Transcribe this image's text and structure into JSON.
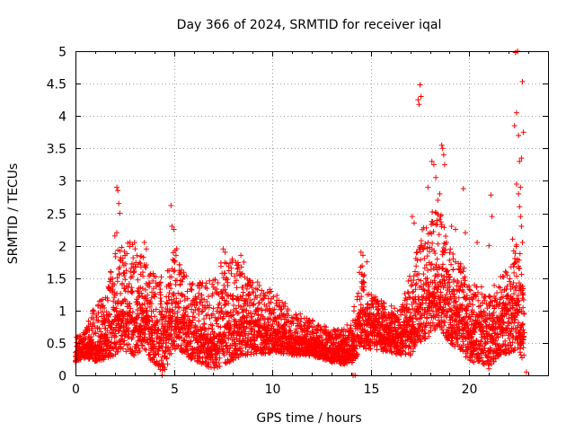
{
  "chart_data": {
    "type": "scatter",
    "title": "Day 366 of 2024, SRMTID for receiver iqal",
    "xlabel": "GPS time / hours",
    "ylabel": "SRMTID / TECUs",
    "xlim": [
      0,
      24
    ],
    "ylim": [
      0,
      5
    ],
    "xticks": [
      0,
      5,
      10,
      15,
      20
    ],
    "yticks": [
      0,
      0.5,
      1,
      1.5,
      2,
      2.5,
      3,
      3.5,
      4,
      4.5,
      5
    ],
    "x_tick_labels": [
      "0",
      "5",
      "10",
      "15",
      "20"
    ],
    "y_tick_labels": [
      "0",
      "0.5",
      "1",
      "1.5",
      "2",
      "2.5",
      "3",
      "3.5",
      "4",
      "4.5",
      "5"
    ],
    "grid": true,
    "marker": "+",
    "marker_color": "#ff0000",
    "series": [
      {
        "name": "SRMTID",
        "envelope": [
          {
            "x": 0.0,
            "low": 0.2,
            "typ": 0.35,
            "high": 0.6
          },
          {
            "x": 0.5,
            "low": 0.25,
            "typ": 0.45,
            "high": 0.7
          },
          {
            "x": 1.0,
            "low": 0.2,
            "typ": 0.45,
            "high": 1.1
          },
          {
            "x": 1.5,
            "low": 0.25,
            "typ": 0.6,
            "high": 1.2
          },
          {
            "x": 2.0,
            "low": 0.3,
            "typ": 0.85,
            "high": 1.9
          },
          {
            "x": 2.3,
            "low": 0.4,
            "typ": 1.0,
            "high": 2.2
          },
          {
            "x": 3.0,
            "low": 0.3,
            "typ": 0.85,
            "high": 2.0
          },
          {
            "x": 3.5,
            "low": 0.4,
            "typ": 0.9,
            "high": 1.9
          },
          {
            "x": 4.0,
            "low": 0.15,
            "typ": 0.75,
            "high": 1.6
          },
          {
            "x": 4.5,
            "low": 0.05,
            "typ": 0.6,
            "high": 1.5
          },
          {
            "x": 5.0,
            "low": 0.4,
            "typ": 1.0,
            "high": 2.1
          },
          {
            "x": 5.5,
            "low": 0.35,
            "typ": 0.9,
            "high": 1.6
          },
          {
            "x": 6.0,
            "low": 0.2,
            "typ": 0.65,
            "high": 1.4
          },
          {
            "x": 7.0,
            "low": 0.1,
            "typ": 0.55,
            "high": 1.5
          },
          {
            "x": 7.5,
            "low": 0.15,
            "typ": 0.7,
            "high": 1.8
          },
          {
            "x": 8.5,
            "low": 0.3,
            "typ": 0.85,
            "high": 1.8
          },
          {
            "x": 9.0,
            "low": 0.3,
            "typ": 0.8,
            "high": 1.5
          },
          {
            "x": 10.0,
            "low": 0.35,
            "typ": 0.65,
            "high": 1.3
          },
          {
            "x": 11.0,
            "low": 0.3,
            "typ": 0.55,
            "high": 1.0
          },
          {
            "x": 12.0,
            "low": 0.3,
            "typ": 0.5,
            "high": 0.9
          },
          {
            "x": 13.0,
            "low": 0.2,
            "typ": 0.4,
            "high": 0.7
          },
          {
            "x": 14.0,
            "low": 0.15,
            "typ": 0.4,
            "high": 0.8
          },
          {
            "x": 14.5,
            "low": 0.4,
            "typ": 1.0,
            "high": 1.8
          },
          {
            "x": 15.0,
            "low": 0.4,
            "typ": 0.8,
            "high": 1.3
          },
          {
            "x": 16.0,
            "low": 0.35,
            "typ": 0.7,
            "high": 1.1
          },
          {
            "x": 16.5,
            "low": 0.3,
            "typ": 0.6,
            "high": 1.0
          },
          {
            "x": 17.0,
            "low": 0.3,
            "typ": 0.85,
            "high": 1.6
          },
          {
            "x": 17.5,
            "low": 0.5,
            "typ": 1.1,
            "high": 2.2
          },
          {
            "x": 18.0,
            "low": 0.6,
            "typ": 1.3,
            "high": 2.5
          },
          {
            "x": 18.5,
            "low": 0.7,
            "typ": 1.4,
            "high": 2.6
          },
          {
            "x": 19.0,
            "low": 0.5,
            "typ": 1.0,
            "high": 2.0
          },
          {
            "x": 19.5,
            "low": 0.4,
            "typ": 0.9,
            "high": 1.8
          },
          {
            "x": 20.0,
            "low": 0.2,
            "typ": 0.75,
            "high": 1.5
          },
          {
            "x": 20.5,
            "low": 0.2,
            "typ": 0.7,
            "high": 1.4
          },
          {
            "x": 21.0,
            "low": 0.1,
            "typ": 0.6,
            "high": 1.3
          },
          {
            "x": 21.5,
            "low": 0.3,
            "typ": 0.8,
            "high": 1.5
          },
          {
            "x": 22.0,
            "low": 0.3,
            "typ": 1.0,
            "high": 1.7
          },
          {
            "x": 22.5,
            "low": 0.4,
            "typ": 1.1,
            "high": 2.2
          },
          {
            "x": 22.8,
            "low": 0.1,
            "typ": 0.6,
            "high": 1.2
          }
        ],
        "peaks": [
          {
            "x": 2.1,
            "y": 2.9
          },
          {
            "x": 2.15,
            "y": 2.85
          },
          {
            "x": 2.2,
            "y": 2.65
          },
          {
            "x": 2.25,
            "y": 2.5
          },
          {
            "x": 2.1,
            "y": 2.2
          },
          {
            "x": 2.0,
            "y": 2.15
          },
          {
            "x": 3.0,
            "y": 2.05
          },
          {
            "x": 3.5,
            "y": 2.05
          },
          {
            "x": 3.6,
            "y": 1.95
          },
          {
            "x": 4.85,
            "y": 2.62
          },
          {
            "x": 4.9,
            "y": 2.3
          },
          {
            "x": 5.0,
            "y": 2.25
          },
          {
            "x": 7.5,
            "y": 1.95
          },
          {
            "x": 7.6,
            "y": 1.9
          },
          {
            "x": 8.4,
            "y": 1.85
          },
          {
            "x": 14.5,
            "y": 1.9
          },
          {
            "x": 14.6,
            "y": 1.85
          },
          {
            "x": 14.8,
            "y": 1.75
          },
          {
            "x": 14.1,
            "y": 0.0
          },
          {
            "x": 14.2,
            "y": 0.0
          },
          {
            "x": 4.4,
            "y": 0.0
          },
          {
            "x": 17.1,
            "y": 2.45
          },
          {
            "x": 17.2,
            "y": 2.35
          },
          {
            "x": 17.4,
            "y": 4.25
          },
          {
            "x": 17.45,
            "y": 4.18
          },
          {
            "x": 17.5,
            "y": 4.48
          },
          {
            "x": 17.55,
            "y": 4.3
          },
          {
            "x": 18.1,
            "y": 3.3
          },
          {
            "x": 18.2,
            "y": 3.25
          },
          {
            "x": 18.3,
            "y": 3.05
          },
          {
            "x": 18.6,
            "y": 3.55
          },
          {
            "x": 18.65,
            "y": 3.5
          },
          {
            "x": 18.7,
            "y": 3.4
          },
          {
            "x": 18.75,
            "y": 3.25
          },
          {
            "x": 18.5,
            "y": 2.8
          },
          {
            "x": 18.4,
            "y": 2.7
          },
          {
            "x": 17.9,
            "y": 2.9
          },
          {
            "x": 19.1,
            "y": 2.3
          },
          {
            "x": 19.3,
            "y": 2.25
          },
          {
            "x": 19.7,
            "y": 2.88
          },
          {
            "x": 19.8,
            "y": 2.2
          },
          {
            "x": 20.4,
            "y": 2.05
          },
          {
            "x": 21.0,
            "y": 2.0
          },
          {
            "x": 21.1,
            "y": 2.78
          },
          {
            "x": 21.15,
            "y": 2.45
          },
          {
            "x": 22.3,
            "y": 3.85
          },
          {
            "x": 22.4,
            "y": 4.05
          },
          {
            "x": 22.35,
            "y": 4.98
          },
          {
            "x": 22.45,
            "y": 5.0
          },
          {
            "x": 22.5,
            "y": 3.7
          },
          {
            "x": 22.55,
            "y": 3.3
          },
          {
            "x": 22.6,
            "y": 2.9
          },
          {
            "x": 22.65,
            "y": 3.35
          },
          {
            "x": 22.7,
            "y": 4.53
          },
          {
            "x": 22.75,
            "y": 3.75
          },
          {
            "x": 22.4,
            "y": 2.95
          },
          {
            "x": 22.5,
            "y": 2.8
          },
          {
            "x": 22.55,
            "y": 2.6
          },
          {
            "x": 22.6,
            "y": 2.45
          },
          {
            "x": 22.65,
            "y": 2.3
          },
          {
            "x": 22.7,
            "y": 2.05
          },
          {
            "x": 22.2,
            "y": 2.1
          },
          {
            "x": 22.9,
            "y": 0.05
          }
        ]
      }
    ]
  }
}
